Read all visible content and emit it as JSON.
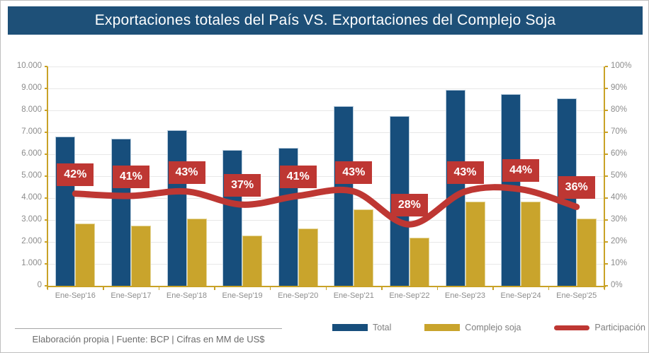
{
  "title": "Exportaciones totales del País VS. Exportaciones del Complejo Soja",
  "footer": {
    "source_line": "Elaboración propia | Fuente: BCP | Cifras en MM de US$"
  },
  "colors": {
    "banner": "#1E5078",
    "total_bar": "#174E7C",
    "soja_bar": "#C9A42C",
    "participation_line": "#BE3733",
    "axis": "#C9A227",
    "grid": "#E8E8E8",
    "tick_text": "#8C8C8C"
  },
  "chart_data": {
    "type": "bar",
    "subtype": "grouped-bars-with-line",
    "title": "Exportaciones totales del País VS. Exportaciones del Complejo Soja",
    "categories": [
      "Ene-Sep'16",
      "Ene-Sep'17",
      "Ene-Sep'18",
      "Ene-Sep'19",
      "Ene-Sep'20",
      "Ene-Sep'21",
      "Ene-Sep'22",
      "Ene-Sep'23",
      "Ene-Sep'24",
      "Ene-Sep'25"
    ],
    "series": [
      {
        "name": "Total",
        "type": "bar",
        "axis": "left",
        "color": "#174E7C",
        "values": [
          6800,
          6700,
          7100,
          6200,
          6300,
          8200,
          7750,
          8950,
          8750,
          8550
        ]
      },
      {
        "name": "Complejo soja",
        "type": "bar",
        "axis": "left",
        "color": "#C9A42C",
        "values": [
          2850,
          2750,
          3050,
          2300,
          2600,
          3500,
          2200,
          3850,
          3850,
          3050
        ]
      },
      {
        "name": "Participación",
        "type": "line",
        "axis": "right",
        "color": "#BE3733",
        "values": [
          42,
          41,
          43,
          37,
          41,
          43,
          28,
          43,
          44,
          36
        ],
        "labels": [
          "42%",
          "41%",
          "43%",
          "37%",
          "41%",
          "43%",
          "28%",
          "43%",
          "44%",
          "36%"
        ]
      }
    ],
    "left_axis": {
      "min": 0,
      "max": 10000,
      "ticks": [
        "0",
        "1.000",
        "2.000",
        "3.000",
        "4.000",
        "5.000",
        "6.000",
        "7.000",
        "8.000",
        "9.000",
        "10.000"
      ]
    },
    "right_axis": {
      "min": 0,
      "max": 100,
      "ticks": [
        "0%",
        "10%",
        "20%",
        "30%",
        "40%",
        "50%",
        "60%",
        "70%",
        "80%",
        "90%",
        "100%"
      ]
    },
    "grid": true,
    "legend_position": "bottom",
    "units_note": "Cifras en MM de US$"
  }
}
